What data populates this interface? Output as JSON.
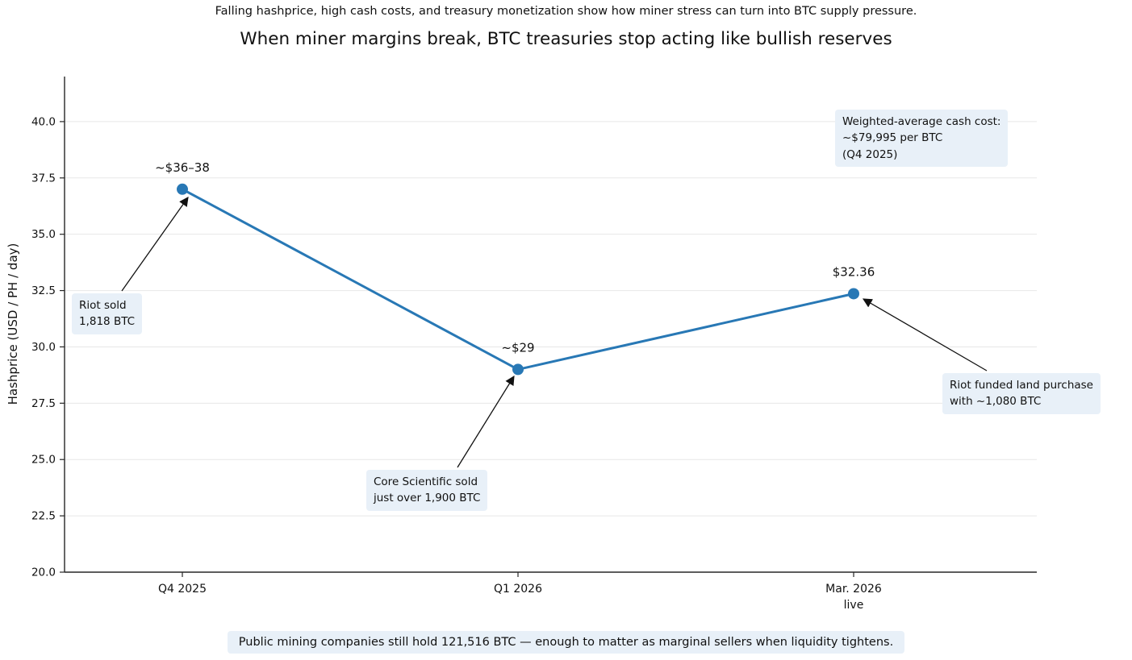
{
  "chart_data": {
    "type": "line",
    "title": "When miner margins break, BTC treasuries stop acting like bullish reserves",
    "subtitle": "Falling hashprice, high cash costs, and treasury monetization show how miner stress can turn into BTC supply pressure.",
    "ylabel": "Hashprice (USD / PH / day)",
    "xlabel": "",
    "categories": [
      "Q4 2025",
      "Q1 2026",
      "Mar. 2026"
    ],
    "x_tick_sublabels": [
      "",
      "",
      "live"
    ],
    "values": [
      37.0,
      29.0,
      32.36
    ],
    "point_labels": [
      "~$36–38",
      "~$29",
      "$32.36"
    ],
    "yticks": [
      20.0,
      22.5,
      25.0,
      27.5,
      30.0,
      32.5,
      35.0,
      37.5,
      40.0
    ],
    "ylim": [
      20,
      42
    ],
    "grid": true,
    "legend": false,
    "line_color": "#2878b5",
    "annotation_box_color": "#e8f0f8",
    "annotations": [
      {
        "id": "riot-sold",
        "text": "Riot sold\n1,818 BTC",
        "arrow": true
      },
      {
        "id": "core-scientific-sold",
        "text": "Core Scientific sold\njust over 1,900 BTC",
        "arrow": true
      },
      {
        "id": "riot-land-purchase",
        "text": "Riot funded land purchase\nwith ~1,080 BTC",
        "arrow": true
      },
      {
        "id": "cash-cost",
        "text": "Weighted-average cash cost:\n~$79,995 per BTC\n(Q4 2025)",
        "arrow": false
      }
    ]
  },
  "footer": {
    "note": "Public mining companies still hold 121,516 BTC — enough to matter as marginal sellers when liquidity tightens."
  }
}
